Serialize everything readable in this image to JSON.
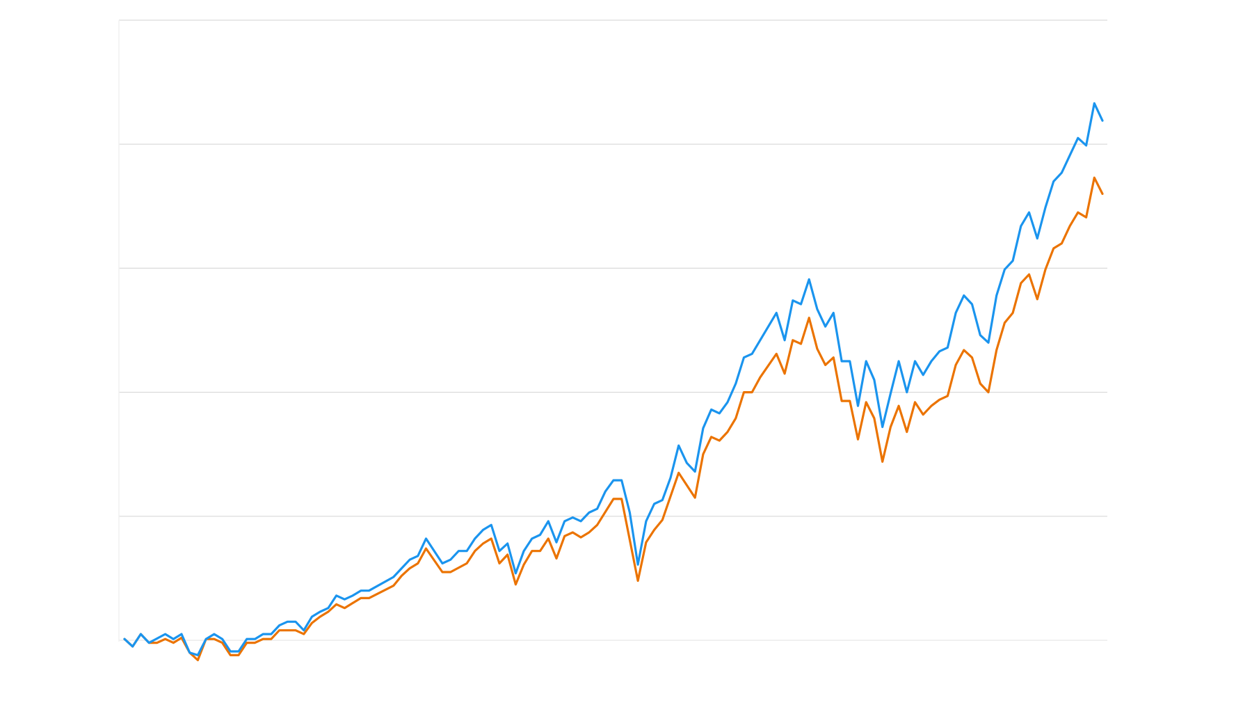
{
  "chart_data": {
    "type": "line",
    "title": "",
    "xlabel": "",
    "ylabel": "",
    "xlim": [
      0,
      120
    ],
    "ylim": [
      0,
      5
    ],
    "yticks": [
      0,
      1,
      2,
      3,
      4,
      5
    ],
    "grid": "horizontal",
    "legend": "none",
    "series": [
      {
        "color": "#1a94ee",
        "x": [
          0,
          1,
          2,
          3,
          5,
          6,
          7,
          8,
          9,
          10,
          11,
          12,
          13,
          14,
          15,
          16,
          17,
          18,
          19,
          20,
          21,
          22,
          23,
          24,
          25,
          26,
          27,
          28,
          29,
          30,
          33,
          34,
          35,
          36,
          37,
          39,
          40,
          41,
          42,
          43,
          44,
          45,
          46,
          47,
          48,
          49,
          50,
          51,
          52,
          53,
          54,
          55,
          56,
          57,
          58,
          59,
          60,
          61,
          62,
          63,
          64,
          65,
          66,
          67,
          68,
          69,
          70,
          71,
          72,
          73,
          74,
          75,
          76,
          77,
          78,
          80,
          81,
          82,
          83,
          84,
          85,
          86,
          87,
          88,
          89,
          90,
          91,
          92,
          93,
          94,
          95,
          96,
          97,
          98,
          99,
          100,
          101,
          102,
          103,
          104,
          105,
          106,
          107,
          108,
          109,
          110,
          111,
          112,
          113,
          114,
          115,
          116,
          117,
          118,
          119,
          120
        ],
        "y": [
          0.01,
          -0.05,
          0.05,
          -0.02,
          0.05,
          0.01,
          0.05,
          -0.1,
          -0.12,
          0.01,
          0.05,
          0.01,
          -0.09,
          -0.09,
          0.01,
          0.01,
          0.05,
          0.05,
          0.12,
          0.15,
          0.15,
          0.08,
          0.19,
          0.23,
          0.26,
          0.36,
          0.33,
          0.36,
          0.4,
          0.4,
          0.51,
          0.58,
          0.65,
          0.68,
          0.82,
          0.62,
          0.65,
          0.72,
          0.72,
          0.82,
          0.89,
          0.93,
          0.72,
          0.78,
          0.54,
          0.72,
          0.82,
          0.85,
          0.96,
          0.79,
          0.96,
          0.99,
          0.96,
          1.03,
          1.06,
          1.2,
          1.29,
          1.29,
          1.03,
          0.61,
          0.96,
          1.1,
          1.13,
          1.31,
          1.57,
          1.43,
          1.36,
          1.71,
          1.86,
          1.83,
          1.92,
          2.07,
          2.28,
          2.31,
          2.42,
          2.64,
          2.42,
          2.74,
          2.71,
          2.91,
          2.67,
          2.53,
          2.64,
          2.25,
          2.25,
          1.89,
          2.25,
          2.1,
          1.72,
          1.99,
          2.25,
          2.0,
          2.25,
          2.14,
          2.25,
          2.33,
          2.36,
          2.64,
          2.78,
          2.71,
          2.46,
          2.4,
          2.78,
          2.99,
          3.06,
          3.34,
          3.45,
          3.24,
          3.49,
          3.7,
          3.77,
          3.91,
          4.05,
          3.99,
          4.33,
          4.19
        ]
      },
      {
        "color": "#eb7300",
        "x": [
          0,
          1,
          2,
          3,
          4,
          5,
          6,
          7,
          8,
          9,
          10,
          11,
          12,
          13,
          14,
          15,
          16,
          17,
          18,
          19,
          21,
          22,
          23,
          24,
          25,
          26,
          27,
          28,
          29,
          30,
          33,
          34,
          35,
          36,
          37,
          39,
          40,
          42,
          43,
          44,
          45,
          46,
          47,
          48,
          49,
          50,
          51,
          52,
          53,
          54,
          55,
          56,
          57,
          58,
          60,
          61,
          63,
          64,
          65,
          66,
          68,
          70,
          71,
          72,
          73,
          74,
          75,
          76,
          77,
          78,
          80,
          81,
          82,
          83,
          84,
          85,
          86,
          87,
          88,
          89,
          90,
          91,
          92,
          93,
          94,
          95,
          96,
          97,
          98,
          99,
          100,
          101,
          102,
          103,
          104,
          105,
          106,
          107,
          108,
          109,
          110,
          111,
          112,
          113,
          114,
          115,
          116,
          117,
          118,
          119,
          120
        ],
        "y": [
          0.01,
          -0.05,
          0.05,
          -0.02,
          -0.02,
          0.01,
          -0.02,
          0.02,
          -0.1,
          -0.16,
          0.01,
          0.01,
          -0.02,
          -0.12,
          -0.12,
          -0.02,
          -0.02,
          0.01,
          0.01,
          0.08,
          0.08,
          0.05,
          0.14,
          0.19,
          0.23,
          0.29,
          0.26,
          0.3,
          0.34,
          0.34,
          0.44,
          0.52,
          0.58,
          0.62,
          0.74,
          0.55,
          0.55,
          0.62,
          0.72,
          0.78,
          0.82,
          0.62,
          0.69,
          0.45,
          0.61,
          0.72,
          0.72,
          0.82,
          0.66,
          0.84,
          0.87,
          0.83,
          0.87,
          0.93,
          1.14,
          1.14,
          0.48,
          0.79,
          0.89,
          0.97,
          1.35,
          1.15,
          1.5,
          1.64,
          1.61,
          1.68,
          1.79,
          2.0,
          2.0,
          2.12,
          2.31,
          2.15,
          2.42,
          2.39,
          2.6,
          2.35,
          2.22,
          2.28,
          1.93,
          1.93,
          1.62,
          1.92,
          1.79,
          1.44,
          1.72,
          1.89,
          1.68,
          1.92,
          1.82,
          1.89,
          1.94,
          1.97,
          2.22,
          2.34,
          2.28,
          2.07,
          2.0,
          2.34,
          2.56,
          2.64,
          2.88,
          2.95,
          2.75,
          2.99,
          3.16,
          3.2,
          3.34,
          3.45,
          3.41,
          3.73,
          3.6
        ]
      }
    ]
  }
}
